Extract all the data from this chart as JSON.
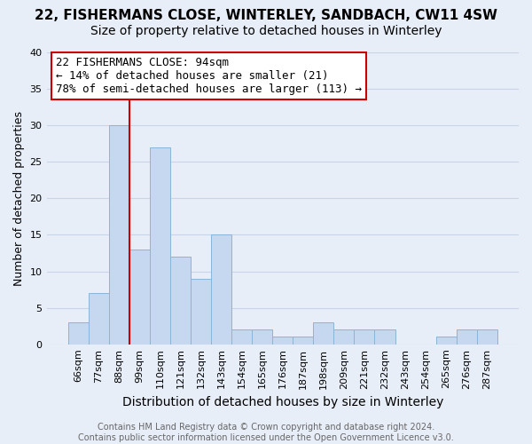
{
  "title": "22, FISHERMANS CLOSE, WINTERLEY, SANDBACH, CW11 4SW",
  "subtitle": "Size of property relative to detached houses in Winterley",
  "xlabel": "Distribution of detached houses by size in Winterley",
  "ylabel": "Number of detached properties",
  "footer_line1": "Contains HM Land Registry data © Crown copyright and database right 2024.",
  "footer_line2": "Contains public sector information licensed under the Open Government Licence v3.0.",
  "bar_labels": [
    "66sqm",
    "77sqm",
    "88sqm",
    "99sqm",
    "110sqm",
    "121sqm",
    "132sqm",
    "143sqm",
    "154sqm",
    "165sqm",
    "176sqm",
    "187sqm",
    "198sqm",
    "209sqm",
    "221sqm",
    "232sqm",
    "243sqm",
    "254sqm",
    "265sqm",
    "276sqm",
    "287sqm"
  ],
  "bar_values": [
    3,
    7,
    30,
    13,
    27,
    12,
    9,
    15,
    2,
    2,
    1,
    1,
    3,
    2,
    2,
    2,
    0,
    0,
    1,
    2,
    2
  ],
  "bar_color": "#c5d8f0",
  "bar_edge_color": "#8ab4d8",
  "vline_color": "#cc0000",
  "annotation_title": "22 FISHERMANS CLOSE: 94sqm",
  "annotation_line1": "← 14% of detached houses are smaller (21)",
  "annotation_line2": "78% of semi-detached houses are larger (113) →",
  "annotation_box_edge": "#cc0000",
  "ylim": [
    0,
    40
  ],
  "yticks": [
    0,
    5,
    10,
    15,
    20,
    25,
    30,
    35,
    40
  ],
  "background_color": "#e8eef8",
  "plot_background": "#e8eef8",
  "grid_color": "#c8d4e8",
  "title_fontsize": 11,
  "subtitle_fontsize": 10,
  "xlabel_fontsize": 10,
  "ylabel_fontsize": 9,
  "tick_fontsize": 8,
  "annotation_fontsize": 9,
  "footer_fontsize": 7
}
